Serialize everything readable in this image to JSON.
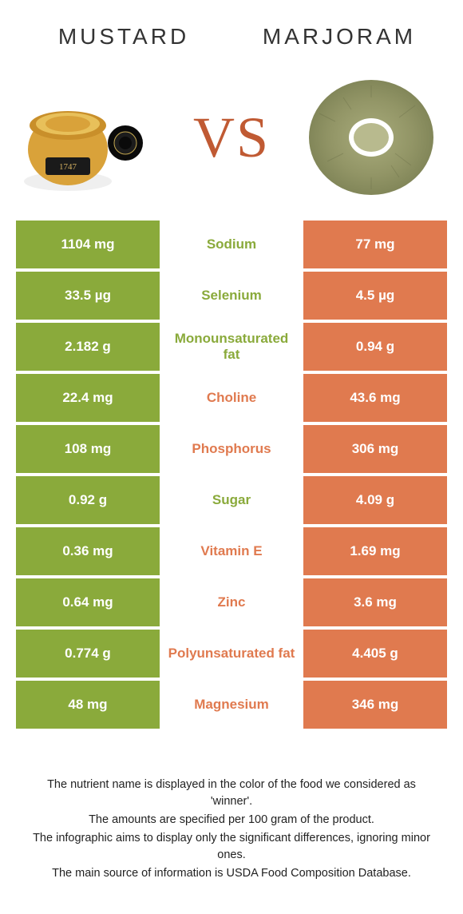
{
  "colors": {
    "left_food": "#8aaa3b",
    "right_food": "#e07a4f",
    "vs_text": "#c05a33",
    "title_text": "#333333",
    "cell_text": "#ffffff"
  },
  "foods": {
    "left": "Mustard",
    "right": "Marjoram"
  },
  "vs_label": "VS",
  "nutrients": [
    {
      "name": "Sodium",
      "left": "1104 mg",
      "right": "77 mg",
      "winner": "left"
    },
    {
      "name": "Selenium",
      "left": "33.5 µg",
      "right": "4.5 µg",
      "winner": "left"
    },
    {
      "name": "Monounsaturated fat",
      "left": "2.182 g",
      "right": "0.94 g",
      "winner": "left"
    },
    {
      "name": "Choline",
      "left": "22.4 mg",
      "right": "43.6 mg",
      "winner": "right"
    },
    {
      "name": "Phosphorus",
      "left": "108 mg",
      "right": "306 mg",
      "winner": "right"
    },
    {
      "name": "Sugar",
      "left": "0.92 g",
      "right": "4.09 g",
      "winner": "left"
    },
    {
      "name": "Vitamin E",
      "left": "0.36 mg",
      "right": "1.69 mg",
      "winner": "right"
    },
    {
      "name": "Zinc",
      "left": "0.64 mg",
      "right": "3.6 mg",
      "winner": "right"
    },
    {
      "name": "Polyunsaturated fat",
      "left": "0.774 g",
      "right": "4.405 g",
      "winner": "right"
    },
    {
      "name": "Magnesium",
      "left": "48 mg",
      "right": "346 mg",
      "winner": "right"
    }
  ],
  "footnotes": [
    "The nutrient name is displayed in the color of the food we considered as 'winner'.",
    "The amounts are specified per 100 gram of the product.",
    "The infographic aims to display only the significant differences, ignoring minor ones.",
    "The main source of information is USDA Food Composition Database."
  ]
}
